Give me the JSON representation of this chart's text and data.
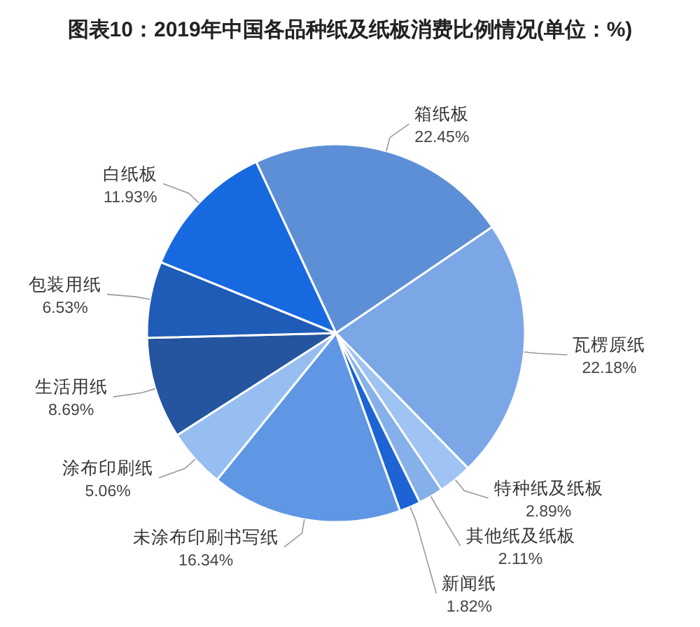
{
  "chart_data": {
    "type": "pie",
    "title": "图表10：2019年中国各品种纸及纸板消费比例情况(单位：%)",
    "categories": [
      "箱纸板",
      "瓦楞原纸",
      "特种纸及纸板",
      "其他纸及纸板",
      "新闻纸",
      "未涂布印刷书写纸",
      "涂布印刷纸",
      "生活用纸",
      "包装用纸",
      "白纸板"
    ],
    "values": [
      22.45,
      22.18,
      2.89,
      2.11,
      1.82,
      16.34,
      5.06,
      8.69,
      6.53,
      11.93
    ],
    "value_labels": [
      "22.45%",
      "22.18%",
      "2.89%",
      "2.11%",
      "1.82%",
      "16.34%",
      "5.06%",
      "8.69%",
      "6.53%",
      "11.93%"
    ],
    "colors": [
      "#5d8fd6",
      "#7ba7e6",
      "#9fc3f2",
      "#86b0ea",
      "#1d63d4",
      "#5f97e4",
      "#97bef0",
      "#25559f",
      "#1f5cb8",
      "#1769e0"
    ]
  }
}
